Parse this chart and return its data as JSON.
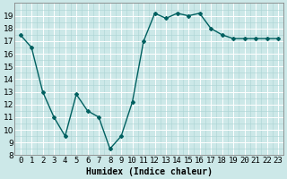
{
  "x": [
    0,
    1,
    2,
    3,
    4,
    5,
    6,
    7,
    8,
    9,
    10,
    11,
    12,
    13,
    14,
    15,
    16,
    17,
    18,
    19,
    20,
    21,
    22,
    23
  ],
  "y": [
    17.5,
    16.5,
    13.0,
    11.0,
    9.5,
    12.8,
    11.5,
    11.0,
    8.5,
    9.5,
    12.2,
    17.0,
    19.2,
    18.8,
    19.2,
    19.0,
    19.2,
    18.0,
    17.5,
    17.2,
    17.2,
    17.2,
    17.2,
    17.2
  ],
  "line_color": "#006060",
  "marker": "D",
  "marker_size": 2,
  "line_width": 1.0,
  "bg_color": "#cce8e8",
  "grid_major_color": "#ffffff",
  "grid_minor_color": "#aad4d4",
  "xlabel": "Humidex (Indice chaleur)",
  "xlabel_fontsize": 7,
  "ylim": [
    8,
    20
  ],
  "xlim": [
    -0.5,
    23.5
  ],
  "yticks": [
    8,
    9,
    10,
    11,
    12,
    13,
    14,
    15,
    16,
    17,
    18,
    19
  ],
  "xtick_labels": [
    "0",
    "1",
    "2",
    "3",
    "4",
    "5",
    "6",
    "7",
    "8",
    "9",
    "10",
    "11",
    "12",
    "13",
    "14",
    "15",
    "16",
    "17",
    "18",
    "19",
    "20",
    "21",
    "22",
    "23"
  ],
  "tick_fontsize": 6.5,
  "spine_color": "#888888"
}
